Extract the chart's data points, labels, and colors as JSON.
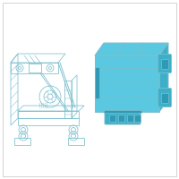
{
  "bg_color": "#ffffff",
  "border_color": "#c8c8c8",
  "line_color": "#7BBFCE",
  "fill_color_top": "#5AC8E0",
  "fill_color_front": "#5AC8E0",
  "fill_color_right": "#3DAFC8",
  "fill_color_dark": "#2E9AB5",
  "fig_size": [
    2.0,
    2.0
  ],
  "dpi": 100
}
